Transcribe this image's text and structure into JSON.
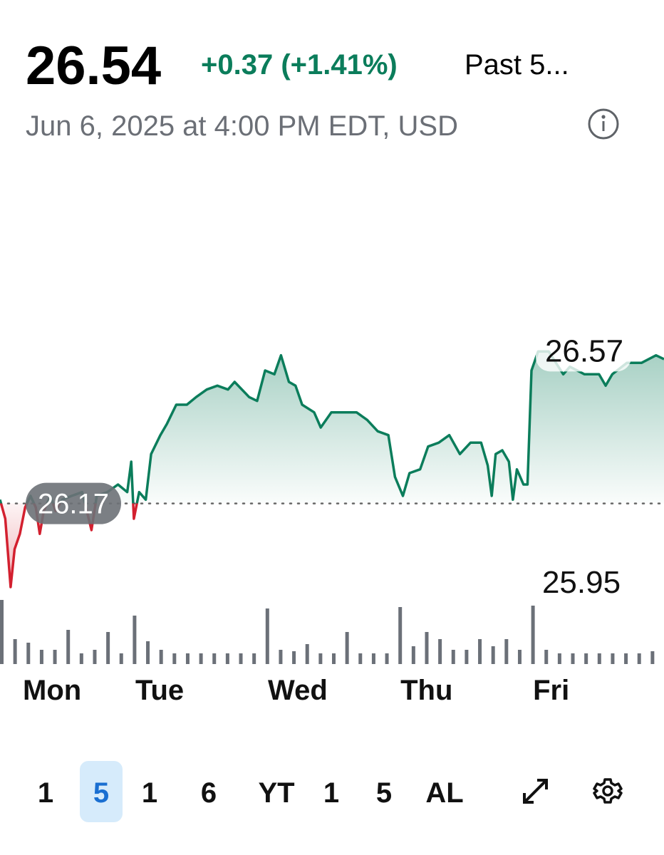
{
  "chart_data": {
    "type": "line",
    "price": "26.54",
    "change": "+0.37 (+1.41%)",
    "period": "Past 5...",
    "timestamp": "Jun 6, 2025 at 4:00 PM EDT, USD",
    "x": [
      0,
      0.04,
      0.08,
      0.11,
      0.15,
      0.19,
      0.23,
      0.27,
      0.3,
      0.33,
      0.38,
      0.42,
      0.47,
      0.54,
      0.62,
      0.69,
      0.73,
      0.81,
      0.89,
      0.96,
      0.99,
      1.01,
      1.05,
      1.1,
      1.14,
      1.21,
      1.26,
      1.33,
      1.41,
      1.48,
      1.56,
      1.64,
      1.72,
      1.77,
      1.88,
      1.94,
      2.0,
      2.07,
      2.12,
      2.18,
      2.23,
      2.28,
      2.37,
      2.42,
      2.5,
      2.58,
      2.69,
      2.77,
      2.85,
      2.93,
      2.98,
      3.04,
      3.09,
      3.17,
      3.23,
      3.31,
      3.39,
      3.47,
      3.55,
      3.63,
      3.68,
      3.71,
      3.74,
      3.79,
      3.84,
      3.87,
      3.9,
      3.95,
      3.98,
      4.01,
      4.06,
      4.14,
      4.25,
      4.3,
      4.41,
      4.52,
      4.57,
      4.62,
      4.73,
      4.84,
      4.95,
      5.01
    ],
    "series": [
      {
        "color": "#0b7d5b",
        "down_color": "#d3202f",
        "values": [
          26.18,
          26.13,
          25.95,
          26.05,
          26.09,
          26.16,
          26.19,
          26.16,
          26.09,
          26.15,
          26.19,
          26.15,
          26.18,
          26.19,
          26.2,
          26.1,
          26.19,
          26.2,
          26.22,
          26.2,
          26.28,
          26.13,
          26.2,
          26.18,
          26.3,
          26.35,
          26.38,
          26.43,
          26.43,
          26.45,
          26.47,
          26.48,
          26.47,
          26.49,
          26.45,
          26.44,
          26.52,
          26.51,
          26.56,
          26.49,
          26.48,
          26.43,
          26.41,
          26.37,
          26.41,
          26.41,
          26.41,
          26.39,
          26.36,
          26.35,
          26.24,
          26.19,
          26.25,
          26.26,
          26.32,
          26.33,
          26.35,
          26.3,
          26.33,
          26.33,
          26.27,
          26.19,
          26.3,
          26.31,
          26.28,
          26.18,
          26.26,
          26.22,
          26.22,
          26.52,
          26.57,
          26.57,
          26.51,
          26.53,
          26.51,
          26.51,
          26.48,
          26.51,
          26.54,
          26.54,
          26.56,
          26.55
        ]
      }
    ],
    "previous_close": 26.17,
    "high": 26.57,
    "low": 25.95,
    "xlim": [
      0,
      5.01
    ],
    "ylim": [
      25.92,
      26.67
    ],
    "xticks": [
      {
        "value": 0,
        "label": "Mon"
      },
      {
        "value": 1,
        "label": "Tue"
      },
      {
        "value": 2,
        "label": "Wed"
      },
      {
        "value": 3,
        "label": "Thu"
      },
      {
        "value": 4,
        "label": "Fri"
      }
    ],
    "volume": {
      "color": "#6b7078",
      "ylim": [
        0,
        100
      ],
      "values": [
        90,
        35,
        30,
        20,
        20,
        48,
        15,
        20,
        45,
        15,
        68,
        32,
        20,
        15,
        15,
        15,
        15,
        15,
        15,
        15,
        78,
        20,
        18,
        28,
        15,
        15,
        45,
        15,
        15,
        15,
        80,
        25,
        45,
        35,
        20,
        20,
        35,
        25,
        35,
        20,
        82,
        20,
        15,
        15,
        15,
        15,
        15,
        15,
        15,
        18
      ]
    },
    "ranges": [
      "1",
      "5",
      "1",
      "6",
      "YT",
      "1",
      "5",
      "AL"
    ],
    "selected_range": 1
  }
}
